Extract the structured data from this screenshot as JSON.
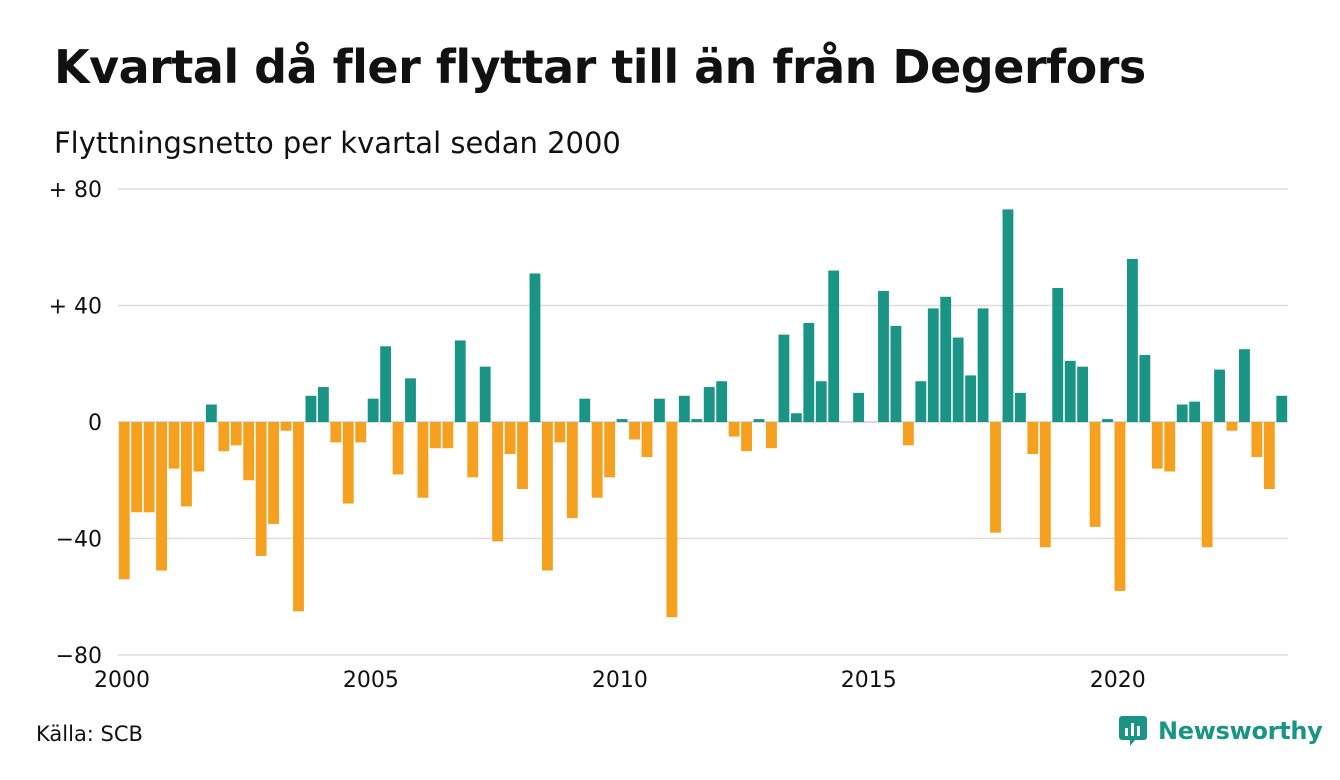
{
  "header": {
    "title": "Kvartal då fler flyttar till än från Degerfors",
    "subtitle": "Flyttningsnetto per kvartal sedan 2000"
  },
  "footer": {
    "source": "Källa: SCB",
    "brand": "Newsworthy"
  },
  "chart_data": {
    "type": "bar",
    "title": "Kvartal då fler flyttar till än från Degerfors",
    "subtitle": "Flyttningsnetto per kvartal sedan 2000",
    "xlabel": "",
    "ylabel": "",
    "ylim": [
      -80,
      80
    ],
    "yticks": [
      80,
      40,
      0,
      -40,
      -80
    ],
    "ytick_labels": [
      "+ 80",
      "+ 40",
      "0",
      "−40",
      "−80"
    ],
    "xticks": [
      "2000",
      "2005",
      "2010",
      "2015",
      "2020"
    ],
    "grid": true,
    "legend": "none",
    "colors": {
      "positive": "#1a9585",
      "negative": "#f5a01e",
      "grid": "#dddddd"
    },
    "start": "2000 Q1",
    "values": [
      -54,
      -31,
      -31,
      -51,
      -16,
      -29,
      -17,
      6,
      -10,
      -8,
      -20,
      -46,
      -35,
      -3,
      -65,
      9,
      12,
      -7,
      -28,
      -7,
      8,
      26,
      -18,
      15,
      -26,
      -9,
      -9,
      28,
      -19,
      19,
      -41,
      -11,
      -23,
      51,
      -51,
      -7,
      -33,
      8,
      -26,
      -19,
      1,
      -6,
      -12,
      8,
      -67,
      9,
      1,
      12,
      14,
      -5,
      -10,
      1,
      -9,
      30,
      3,
      34,
      14,
      52,
      0,
      10,
      0,
      45,
      33,
      -8,
      14,
      39,
      43,
      29,
      16,
      39,
      -38,
      73,
      10,
      -11,
      -43,
      46,
      21,
      19,
      -36,
      1,
      -58,
      56,
      23,
      -16,
      -17,
      6,
      7,
      -43,
      18,
      -3,
      25,
      -12,
      -23,
      9
    ]
  }
}
